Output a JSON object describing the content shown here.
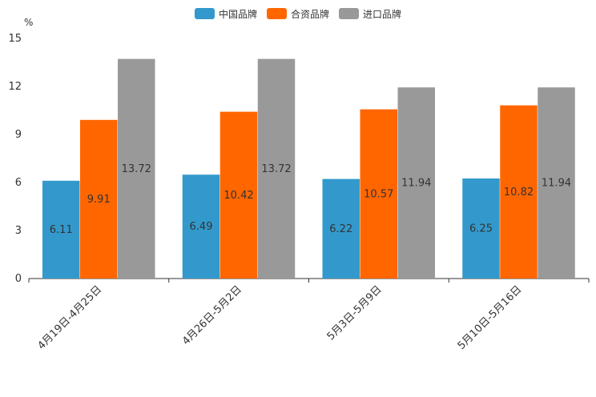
{
  "chart_data": {
    "type": "bar",
    "unit_label": "%",
    "categories": [
      "4月19日-4月25日",
      "4月26日-5月2日",
      "5月3日-5月9日",
      "5月10日-5月16日"
    ],
    "series": [
      {
        "name": "中国品牌",
        "color": "#3399cc",
        "values": [
          6.11,
          6.49,
          6.22,
          6.25
        ],
        "labels": [
          "6.11",
          "6.49",
          "6.22",
          "6.25"
        ]
      },
      {
        "name": "合资品牌",
        "color": "#ff6600",
        "values": [
          9.91,
          10.42,
          10.57,
          10.82
        ],
        "labels": [
          "9.91",
          "10.42",
          "10.57",
          "10.82"
        ]
      },
      {
        "name": "进口品牌",
        "color": "#999999",
        "values": [
          13.72,
          13.72,
          11.94,
          11.94
        ],
        "labels": [
          "13.72",
          "13.72",
          "11.94",
          "11.94"
        ]
      }
    ],
    "ylim": [
      0,
      15
    ],
    "yticks": [
      "0",
      "3",
      "6",
      "9",
      "12",
      "15"
    ],
    "legend_position": "top-center",
    "grid": false
  }
}
